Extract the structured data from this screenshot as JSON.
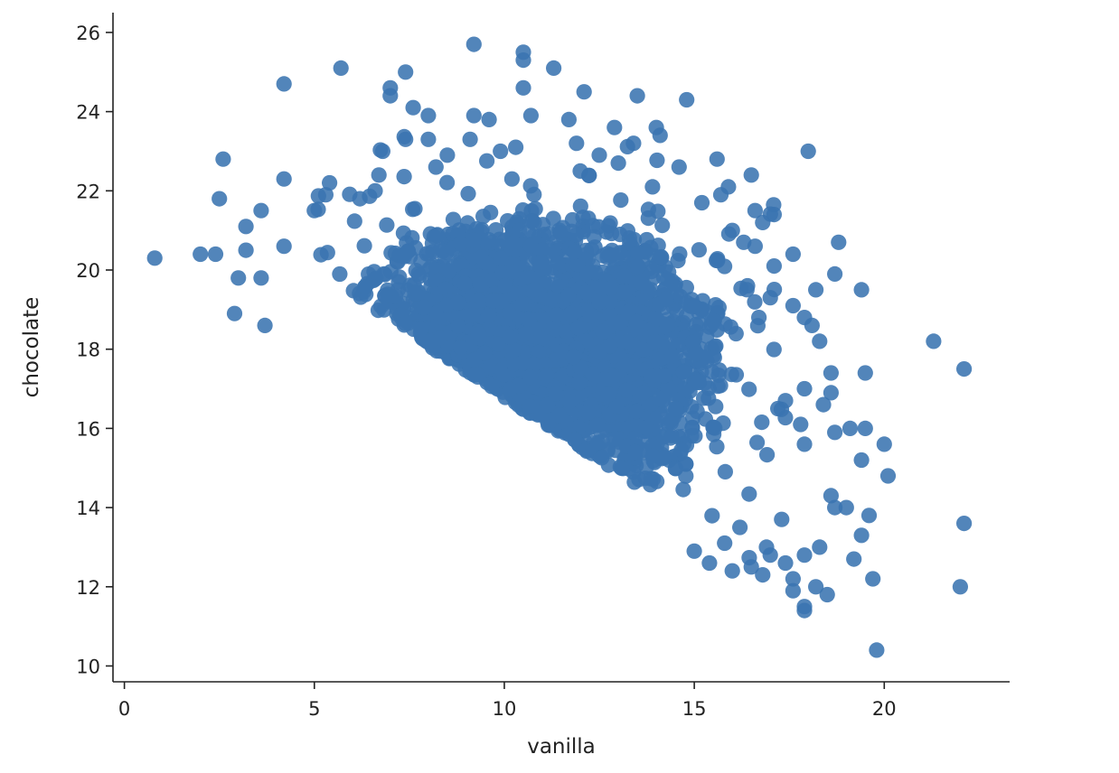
{
  "chart_data": {
    "type": "scatter",
    "title": "",
    "xlabel": "vanilla",
    "ylabel": "chocolate",
    "xlim": [
      -0.3,
      23.3
    ],
    "ylim": [
      9.6,
      26.5
    ],
    "xticks": [
      0,
      5,
      10,
      15,
      20
    ],
    "yticks": [
      10,
      12,
      14,
      16,
      18,
      20,
      22,
      24,
      26
    ],
    "grid": false,
    "legend": "none",
    "spines": [
      "left",
      "bottom"
    ],
    "point_color": "#3a74b0",
    "point_opacity": 0.88,
    "series": [
      {
        "points": [
          [
            0.8,
            20.3
          ],
          [
            2.0,
            20.4
          ],
          [
            2.4,
            20.4
          ],
          [
            2.6,
            22.8
          ],
          [
            2.5,
            21.8
          ],
          [
            3.2,
            21.1
          ],
          [
            3.6,
            21.5
          ],
          [
            3.2,
            20.5
          ],
          [
            2.9,
            18.9
          ],
          [
            3.0,
            19.8
          ],
          [
            3.6,
            19.8
          ],
          [
            3.7,
            18.6
          ],
          [
            4.2,
            22.3
          ],
          [
            4.2,
            20.6
          ],
          [
            4.2,
            24.7
          ],
          [
            5.7,
            25.1
          ],
          [
            7.0,
            24.6
          ],
          [
            7.0,
            24.4
          ],
          [
            7.4,
            25.0
          ],
          [
            9.2,
            25.7
          ],
          [
            10.5,
            25.5
          ],
          [
            10.5,
            25.3
          ],
          [
            11.3,
            25.1
          ],
          [
            10.5,
            24.6
          ],
          [
            12.1,
            24.5
          ],
          [
            13.5,
            24.4
          ],
          [
            14.8,
            24.3
          ],
          [
            7.6,
            24.1
          ],
          [
            8.0,
            23.9
          ],
          [
            9.2,
            23.9
          ],
          [
            9.6,
            23.8
          ],
          [
            10.7,
            23.9
          ],
          [
            11.7,
            23.8
          ],
          [
            12.9,
            23.6
          ],
          [
            14.0,
            23.6
          ],
          [
            13.4,
            23.2
          ],
          [
            14.1,
            23.4
          ],
          [
            7.4,
            23.3
          ],
          [
            8.0,
            23.3
          ],
          [
            9.1,
            23.3
          ],
          [
            10.3,
            23.1
          ],
          [
            11.9,
            23.2
          ],
          [
            6.8,
            23.0
          ],
          [
            8.5,
            22.9
          ],
          [
            9.9,
            23.0
          ],
          [
            12.5,
            22.9
          ],
          [
            13.0,
            22.7
          ],
          [
            14.6,
            22.6
          ],
          [
            15.6,
            22.8
          ],
          [
            16.5,
            22.4
          ],
          [
            18.0,
            23.0
          ],
          [
            6.7,
            22.4
          ],
          [
            8.2,
            22.6
          ],
          [
            10.2,
            22.3
          ],
          [
            12.0,
            22.5
          ],
          [
            13.9,
            22.1
          ],
          [
            15.2,
            21.7
          ],
          [
            15.7,
            21.9
          ],
          [
            15.9,
            22.1
          ],
          [
            16.6,
            21.5
          ],
          [
            17.1,
            21.4
          ],
          [
            16.8,
            21.2
          ],
          [
            5.4,
            22.2
          ],
          [
            5.0,
            21.5
          ],
          [
            5.3,
            21.9
          ],
          [
            6.2,
            21.8
          ],
          [
            6.6,
            22.0
          ],
          [
            16.0,
            21.0
          ],
          [
            16.3,
            20.7
          ],
          [
            16.6,
            20.6
          ],
          [
            17.1,
            20.1
          ],
          [
            17.6,
            20.4
          ],
          [
            18.8,
            20.7
          ],
          [
            18.2,
            19.5
          ],
          [
            18.7,
            19.9
          ],
          [
            19.4,
            19.5
          ],
          [
            16.4,
            19.6
          ],
          [
            17.0,
            19.3
          ],
          [
            16.7,
            18.8
          ],
          [
            17.6,
            19.1
          ],
          [
            17.9,
            18.8
          ],
          [
            18.1,
            18.6
          ],
          [
            18.3,
            18.2
          ],
          [
            21.3,
            18.2
          ],
          [
            22.1,
            17.5
          ],
          [
            19.5,
            17.4
          ],
          [
            18.6,
            17.4
          ],
          [
            17.9,
            17.0
          ],
          [
            17.4,
            16.7
          ],
          [
            18.4,
            16.6
          ],
          [
            18.6,
            16.9
          ],
          [
            17.2,
            16.5
          ],
          [
            17.8,
            16.1
          ],
          [
            19.1,
            16.0
          ],
          [
            19.5,
            16.0
          ],
          [
            18.7,
            15.9
          ],
          [
            17.9,
            15.6
          ],
          [
            20.0,
            15.6
          ],
          [
            19.4,
            15.2
          ],
          [
            20.1,
            14.8
          ],
          [
            18.6,
            14.3
          ],
          [
            18.7,
            14.0
          ],
          [
            19.0,
            14.0
          ],
          [
            19.6,
            13.8
          ],
          [
            19.4,
            13.3
          ],
          [
            22.1,
            13.6
          ],
          [
            19.2,
            12.7
          ],
          [
            17.9,
            12.8
          ],
          [
            18.3,
            13.0
          ],
          [
            17.4,
            12.6
          ],
          [
            17.6,
            12.2
          ],
          [
            17.6,
            11.9
          ],
          [
            17.9,
            11.5
          ],
          [
            18.2,
            12.0
          ],
          [
            18.5,
            11.8
          ],
          [
            17.9,
            11.4
          ],
          [
            19.7,
            12.2
          ],
          [
            22.0,
            12.0
          ],
          [
            19.8,
            10.4
          ],
          [
            16.5,
            12.5
          ],
          [
            16.8,
            12.3
          ],
          [
            17.0,
            12.8
          ],
          [
            16.0,
            12.4
          ],
          [
            15.4,
            12.6
          ],
          [
            16.2,
            13.5
          ],
          [
            16.9,
            13.0
          ],
          [
            17.3,
            13.7
          ],
          [
            15.0,
            12.9
          ],
          [
            15.8,
            13.1
          ]
        ]
      }
    ]
  }
}
